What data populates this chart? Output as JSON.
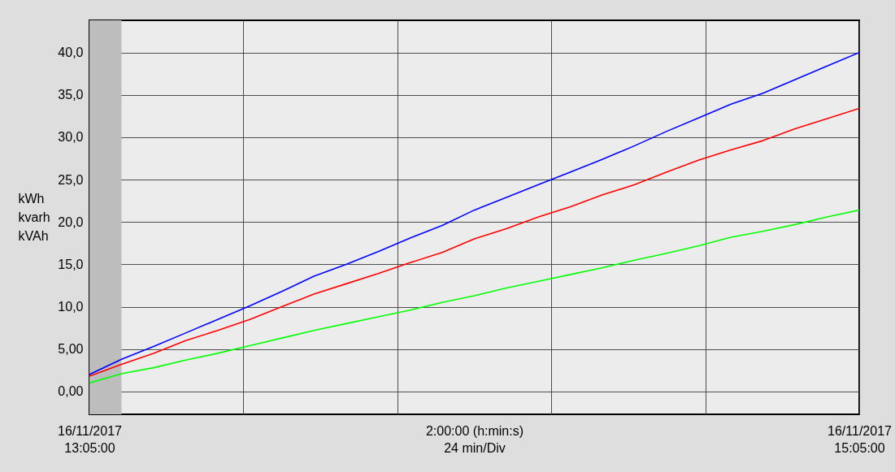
{
  "chart_data": {
    "type": "line",
    "xlabel": "2:00:00 (h:min:s)\n24 min/Div",
    "ylabel": "kWh\nkvarh\nkVAh",
    "x": [
      "2017-11-16T13:05",
      "2017-11-16T13:10",
      "2017-11-16T13:15",
      "2017-11-16T13:20",
      "2017-11-16T13:25",
      "2017-11-16T13:30",
      "2017-11-16T13:35",
      "2017-11-16T13:40",
      "2017-11-16T13:45",
      "2017-11-16T13:50",
      "2017-11-16T13:55",
      "2017-11-16T14:00",
      "2017-11-16T14:05",
      "2017-11-16T14:10",
      "2017-11-16T14:15",
      "2017-11-16T14:20",
      "2017-11-16T14:25",
      "2017-11-16T14:30",
      "2017-11-16T14:35",
      "2017-11-16T14:40",
      "2017-11-16T14:45",
      "2017-11-16T14:50",
      "2017-11-16T14:55",
      "2017-11-16T15:00",
      "2017-11-16T15:05"
    ],
    "xlim": [
      "2017-11-16T13:05",
      "2017-11-16T15:05"
    ],
    "xticks": [
      {
        "value": "2017-11-16T13:05",
        "label": "16/11/2017\n13:05:00"
      },
      {
        "value": "2017-11-16T13:29",
        "label": null
      },
      {
        "value": "2017-11-16T13:53",
        "label": null
      },
      {
        "value": "2017-11-16T14:17",
        "label": null
      },
      {
        "value": "2017-11-16T14:41",
        "label": null
      },
      {
        "value": "2017-11-16T15:05",
        "label": "16/11/2017\n15:05:00"
      }
    ],
    "ylim": [
      -2.7,
      43.8
    ],
    "yticks": [
      {
        "value": 0,
        "label": "0,00"
      },
      {
        "value": 5,
        "label": "5,00"
      },
      {
        "value": 10,
        "label": "10,0"
      },
      {
        "value": 15,
        "label": "15,0"
      },
      {
        "value": 20,
        "label": "20,0"
      },
      {
        "value": 25,
        "label": "25,0"
      },
      {
        "value": 30,
        "label": "30,0"
      },
      {
        "value": 35,
        "label": "35,0"
      },
      {
        "value": 40,
        "label": "40,0"
      }
    ],
    "series": [
      {
        "color": "#0000ff",
        "values": [
          2.0,
          3.8,
          5.3,
          6.9,
          8.5,
          10.1,
          11.8,
          13.6,
          15.0,
          16.5,
          18.1,
          19.6,
          21.4,
          22.9,
          24.4,
          25.9,
          27.4,
          29.0,
          30.7,
          32.3,
          33.9,
          35.2,
          36.8,
          38.4,
          40.0
        ]
      },
      {
        "color": "#ff0000",
        "values": [
          1.8,
          3.2,
          4.5,
          6.0,
          7.2,
          8.5,
          10.0,
          11.5,
          12.7,
          13.9,
          15.2,
          16.4,
          18.0,
          19.2,
          20.6,
          21.8,
          23.2,
          24.4,
          25.9,
          27.3,
          28.5,
          29.6,
          31.0,
          32.2,
          33.4
        ]
      },
      {
        "color": "#00ff00",
        "values": [
          1.0,
          2.1,
          2.8,
          3.7,
          4.5,
          5.4,
          6.3,
          7.2,
          8.0,
          8.8,
          9.6,
          10.5,
          11.3,
          12.2,
          13.0,
          13.8,
          14.6,
          15.5,
          16.3,
          17.2,
          18.2,
          18.9,
          19.7,
          20.6,
          21.4
        ]
      }
    ],
    "bands": [
      {
        "axis": "x",
        "from": "2017-11-16T13:05",
        "to": "2017-11-16T13:10",
        "color": "#bdbdbd"
      }
    ],
    "grid": true
  }
}
